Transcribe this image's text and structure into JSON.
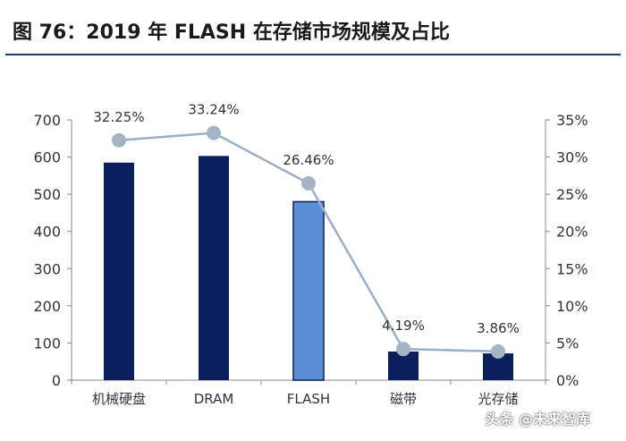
{
  "title": "图 76：2019 年 FLASH 在存储市场规模及占比",
  "watermark": "头条 @未来智库",
  "chart_data": {
    "type": "bar",
    "categories": [
      "机械硬盘",
      "DRAM",
      "FLASH",
      "磁带",
      "光存储"
    ],
    "series": [
      {
        "name": "市场规模",
        "type": "bar",
        "axis": "left",
        "values": [
          585,
          603,
          480,
          77,
          72
        ]
      },
      {
        "name": "占比",
        "type": "line",
        "axis": "right",
        "values": [
          32.25,
          33.24,
          26.46,
          4.19,
          3.86
        ]
      }
    ],
    "data_labels": [
      "32.25%",
      "33.24%",
      "26.46%",
      "4.19%",
      "3.86%"
    ],
    "ylim": [
      0,
      700
    ],
    "y_ticks": [
      0,
      100,
      200,
      300,
      400,
      500,
      600,
      700
    ],
    "y2lim": [
      0,
      35
    ],
    "y2_ticks": [
      "0%",
      "5%",
      "10%",
      "15%",
      "20%",
      "25%",
      "30%",
      "35%"
    ],
    "highlight_category": "FLASH",
    "colors": {
      "bar": "#0a1f5c",
      "highlight_bar": "#5a8fd6",
      "highlight_border": "#0a1f5c",
      "line": "#9aaec6",
      "marker": "#a5b4c4",
      "axis": "#888888",
      "text": "#333333"
    },
    "xlabel": "",
    "ylabel": "",
    "grid": false
  }
}
